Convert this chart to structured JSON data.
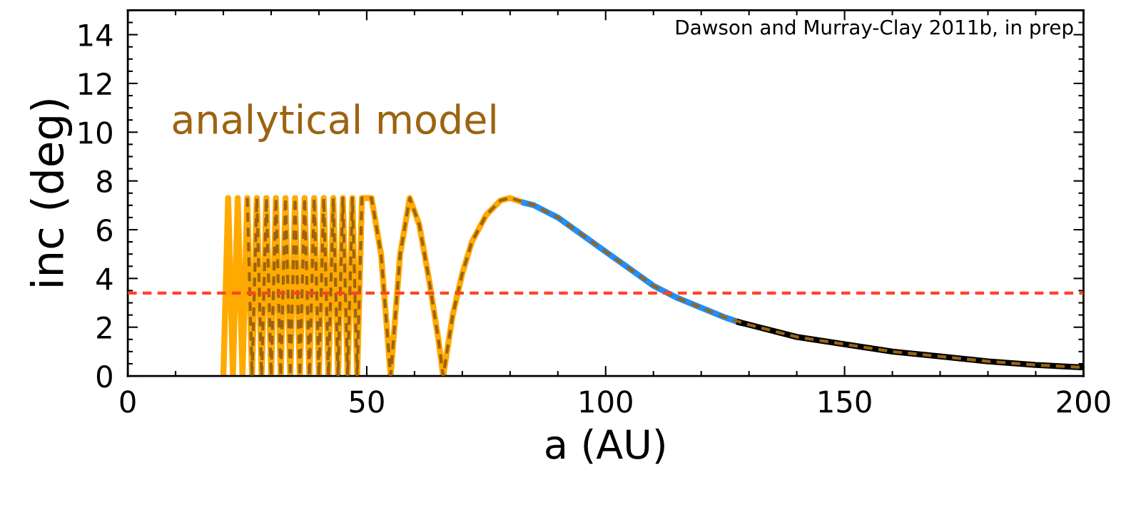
{
  "chart_data": {
    "type": "line",
    "xlabel": "a (AU)",
    "ylabel": "inc (deg)",
    "xlim": [
      0,
      200
    ],
    "xticks": [
      0,
      50,
      100,
      150,
      200
    ],
    "ylim": [
      0,
      15
    ],
    "yticks": [
      0,
      2,
      4,
      6,
      8,
      10,
      12,
      14
    ],
    "grid": false,
    "legend": false,
    "marker": "none",
    "annotations": [
      "Dawson and Murray-Clay 2011b, in prep"
    ],
    "ref_lines": [
      {
        "axis": "y",
        "value": 3.4,
        "label": null,
        "color": "#ff4422",
        "line_style": "dashed"
      }
    ],
    "series": [
      {
        "color": "#ffaa00",
        "line_style": "solid",
        "x": [
          20,
          21,
          22,
          23,
          24,
          25,
          26,
          27,
          28,
          29,
          30,
          31,
          32,
          33,
          34,
          35,
          36,
          37,
          38,
          39,
          40,
          41,
          42,
          43,
          44,
          45,
          46,
          47,
          48,
          49,
          51,
          53,
          55,
          57,
          59,
          61,
          63,
          65,
          66,
          68,
          70,
          72,
          75,
          78,
          80,
          83
        ],
        "values": [
          0,
          7.3,
          0,
          7.3,
          0,
          7.3,
          0,
          7.3,
          0,
          7.3,
          0,
          7.3,
          0,
          7.3,
          0,
          7.3,
          0,
          7.3,
          0,
          7.3,
          0,
          7.3,
          0,
          7.3,
          0,
          7.3,
          0,
          7.3,
          0,
          7.3,
          7.3,
          5,
          0,
          5,
          7.3,
          6.2,
          4,
          1.5,
          0,
          2.5,
          4.2,
          5.5,
          6.6,
          7.2,
          7.3,
          7.1
        ]
      },
      {
        "color": "#1e90ff",
        "line_style": "solid",
        "x": [
          83,
          85,
          90,
          95,
          100,
          105,
          110,
          115,
          120,
          125,
          128
        ],
        "values": [
          7.1,
          7.0,
          6.5,
          5.8,
          5.1,
          4.4,
          3.7,
          3.2,
          2.8,
          2.4,
          2.2
        ]
      },
      {
        "color": "#000000",
        "line_style": "solid",
        "x": [
          128,
          130,
          140,
          150,
          160,
          170,
          180,
          190,
          200
        ],
        "values": [
          2.2,
          2.1,
          1.6,
          1.3,
          1.0,
          0.8,
          0.6,
          0.45,
          0.35
        ]
      },
      {
        "name": "analytical model",
        "color": "#9c6410",
        "line_style": "dashed",
        "x": [
          25,
          26,
          27,
          28,
          29,
          30,
          31,
          32,
          33,
          34,
          35,
          36,
          37,
          38,
          39,
          40,
          41,
          42,
          43,
          44,
          45,
          46,
          47,
          48,
          49,
          51,
          53,
          55,
          57,
          59,
          61,
          63,
          65,
          66,
          68,
          70,
          72,
          75,
          78,
          80,
          85,
          90,
          95,
          100,
          105,
          110,
          115,
          120,
          125,
          130,
          140,
          150,
          160,
          170,
          180,
          190,
          200
        ],
        "values": [
          7.3,
          0,
          7.3,
          0,
          7.3,
          0,
          7.3,
          0,
          7.3,
          0,
          7.3,
          0,
          7.3,
          0,
          7.3,
          0,
          7.3,
          0,
          7.3,
          0,
          7.3,
          0,
          7.3,
          0,
          7.3,
          7.3,
          5,
          0,
          5,
          7.3,
          6.2,
          4,
          1.5,
          0,
          2.5,
          4.2,
          5.5,
          6.6,
          7.2,
          7.3,
          7.0,
          6.5,
          5.8,
          5.1,
          4.4,
          3.7,
          3.2,
          2.8,
          2.4,
          2.1,
          1.6,
          1.3,
          1.0,
          0.8,
          0.6,
          0.45,
          0.35
        ]
      }
    ]
  }
}
